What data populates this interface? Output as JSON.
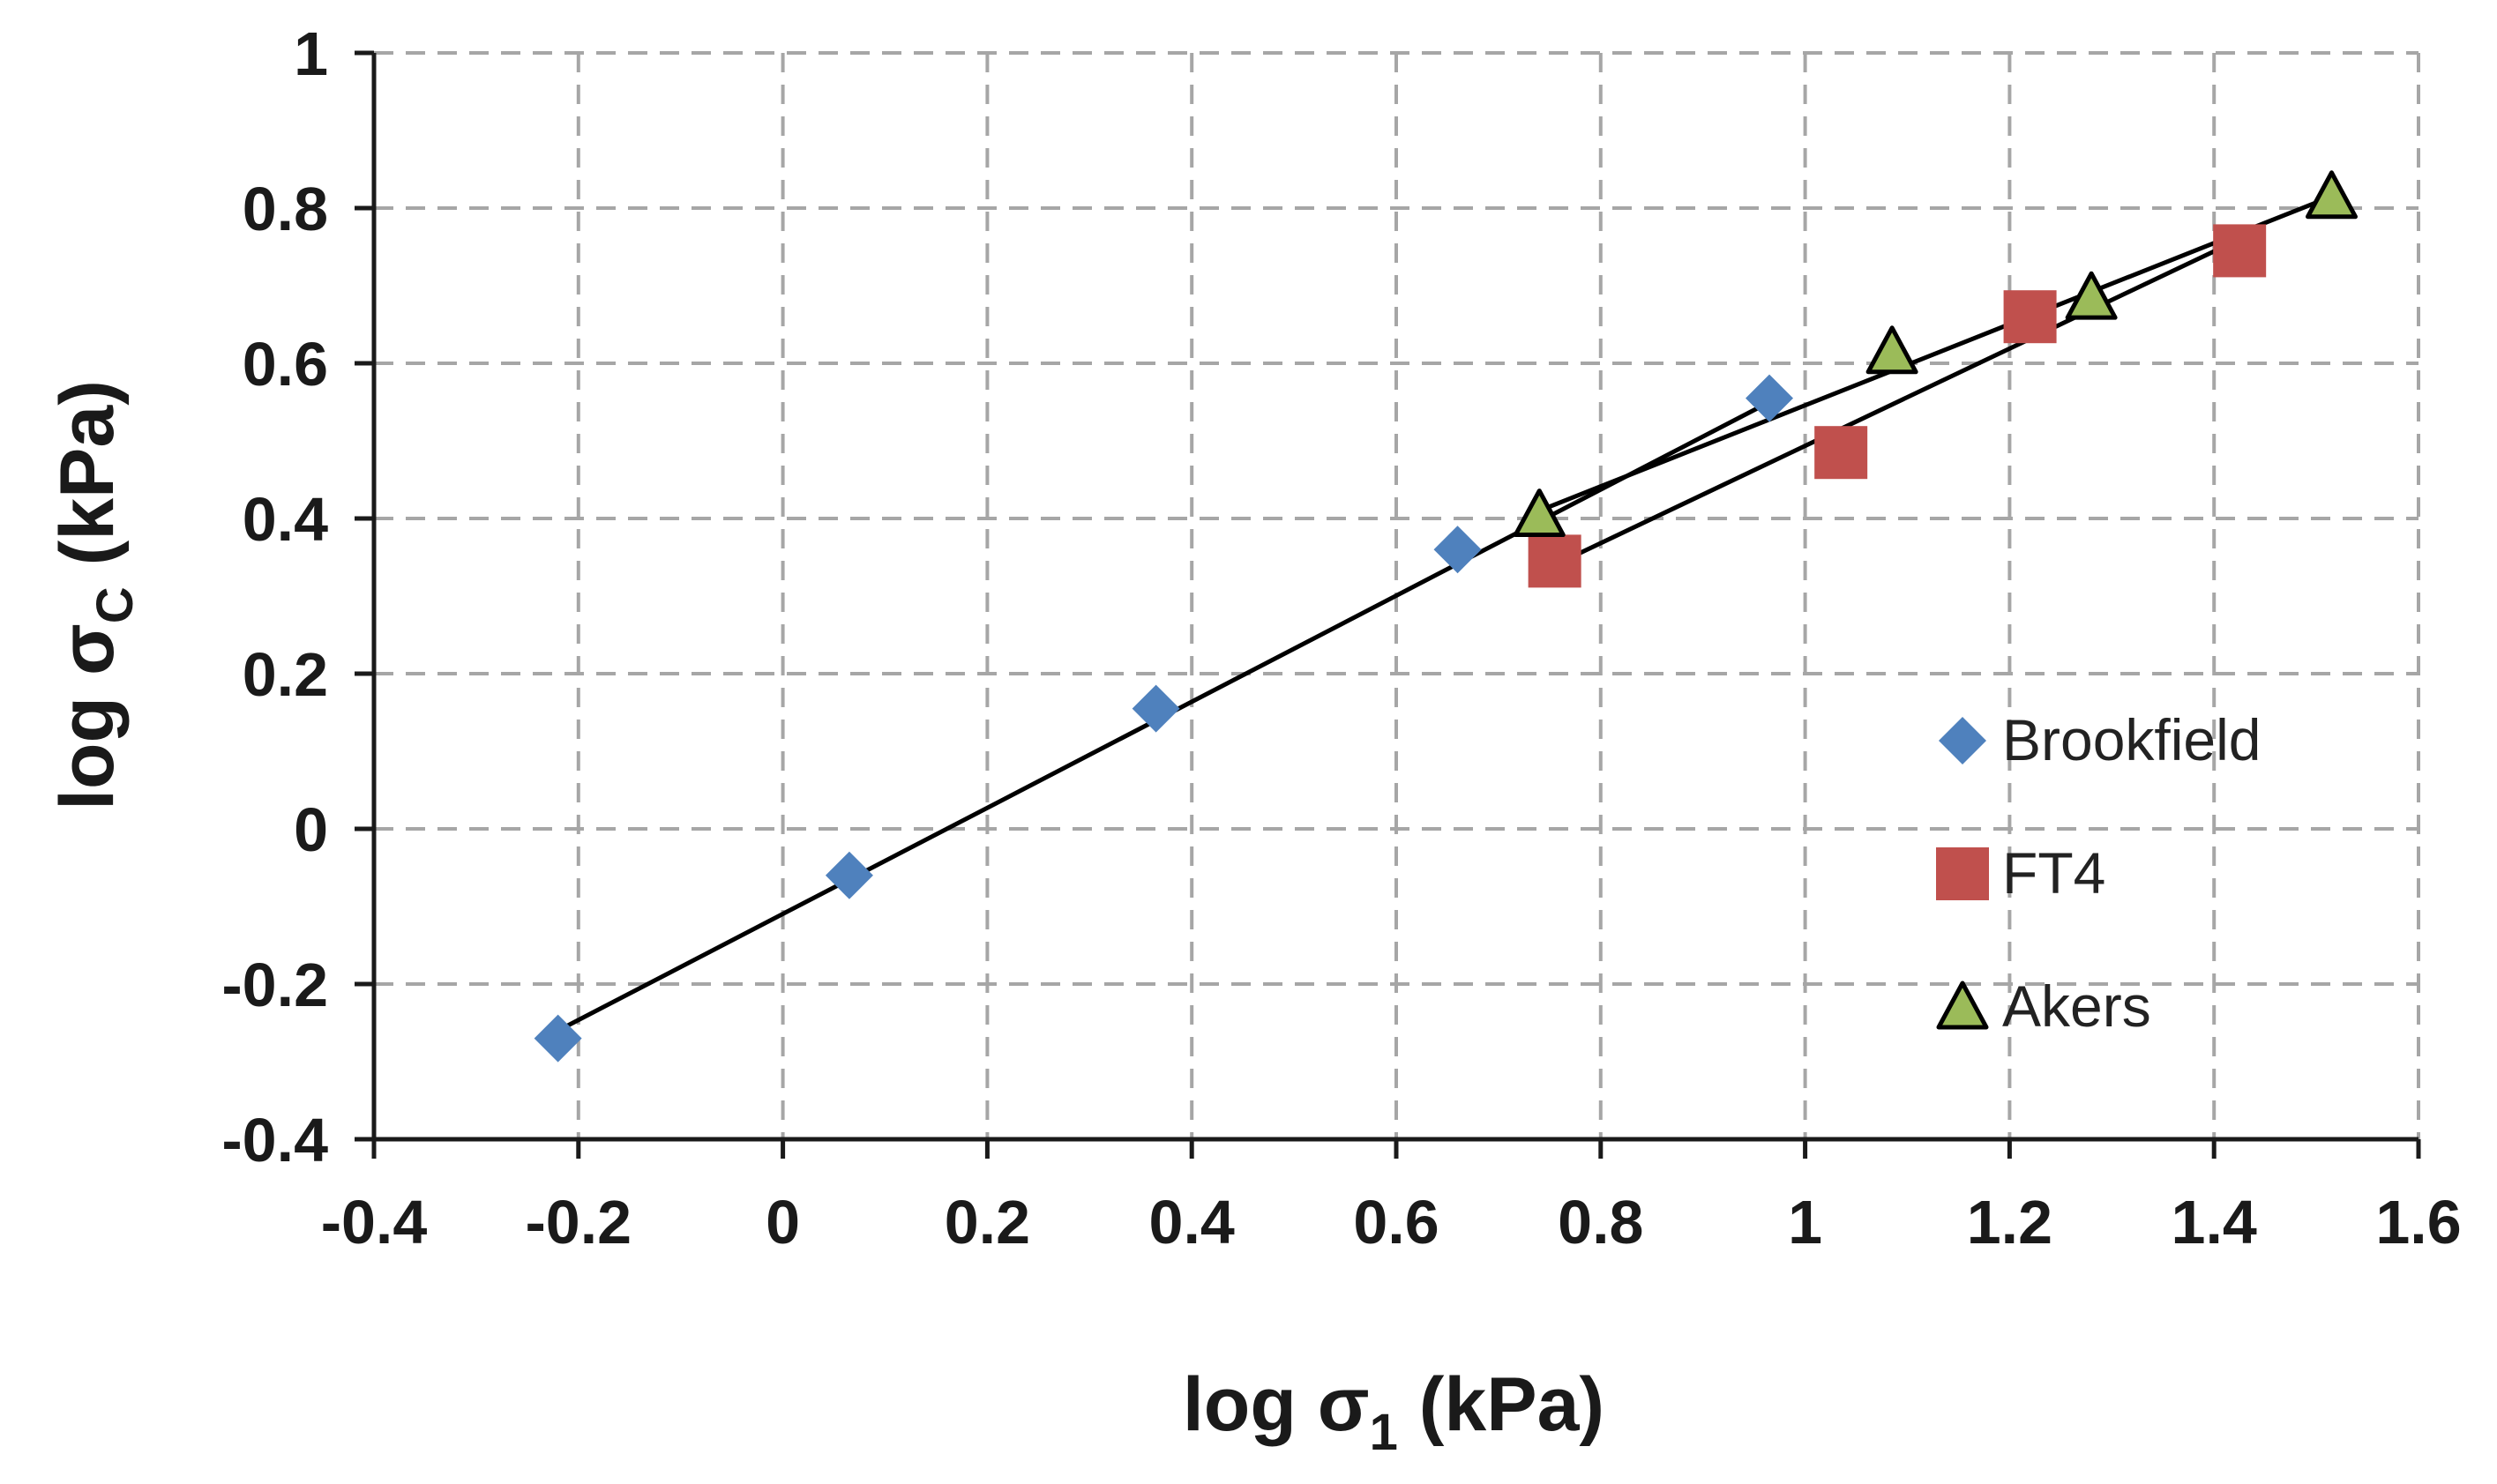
{
  "chart_data": {
    "type": "scatter",
    "title": "",
    "xlabel_parts": {
      "prefix": "log ",
      "symbol": "σ",
      "subscript": "1",
      "suffix": " (kPa)"
    },
    "ylabel_parts": {
      "prefix": "log ",
      "symbol": "σ",
      "subscript": "C",
      "suffix": " (kPa)"
    },
    "xlim": [
      -0.4,
      1.6
    ],
    "ylim": [
      -0.4,
      1.0
    ],
    "xticks": [
      "-0.4",
      "-0.2",
      "0",
      "0.2",
      "0.4",
      "0.6",
      "0.8",
      "1",
      "1.2",
      "1.4",
      "1.6"
    ],
    "yticks": [
      "-0.4",
      "-0.2",
      "0",
      "0.2",
      "0.4",
      "0.6",
      "0.8",
      "1"
    ],
    "xtick_values": [
      -0.4,
      -0.2,
      0,
      0.2,
      0.4,
      0.6,
      0.8,
      1.0,
      1.2,
      1.4,
      1.6
    ],
    "ytick_values": [
      -0.4,
      -0.2,
      0,
      0.2,
      0.4,
      0.6,
      0.8,
      1.0
    ],
    "grid": true,
    "legend_position": "right-center",
    "series": [
      {
        "name": "Brookfield",
        "marker": "diamond",
        "color": "#4f81bd",
        "x": [
          -0.22,
          0.065,
          0.365,
          0.66,
          0.965
        ],
        "y": [
          -0.27,
          -0.06,
          0.155,
          0.36,
          0.555
        ],
        "trendline": {
          "x": [
            -0.22,
            0.965
          ],
          "y": [
            -0.26,
            0.55
          ]
        }
      },
      {
        "name": "FT4",
        "marker": "square",
        "color": "#c0504d",
        "x": [
          0.755,
          1.035,
          1.22,
          1.425
        ],
        "y": [
          0.345,
          0.485,
          0.66,
          0.745
        ],
        "trendline": {
          "x": [
            0.755,
            1.425
          ],
          "y": [
            0.34,
            0.76
          ]
        }
      },
      {
        "name": "Akers",
        "marker": "triangle",
        "color": "#9bbb59",
        "x": [
          0.74,
          1.085,
          1.28,
          1.515
        ],
        "y": [
          0.405,
          0.615,
          0.685,
          0.815
        ],
        "trendline": {
          "x": [
            0.74,
            1.515
          ],
          "y": [
            0.41,
            0.815
          ]
        }
      }
    ],
    "line_color": "#000000",
    "grid_color": "#a6a6a6",
    "axis_color": "#1a1a1a"
  }
}
